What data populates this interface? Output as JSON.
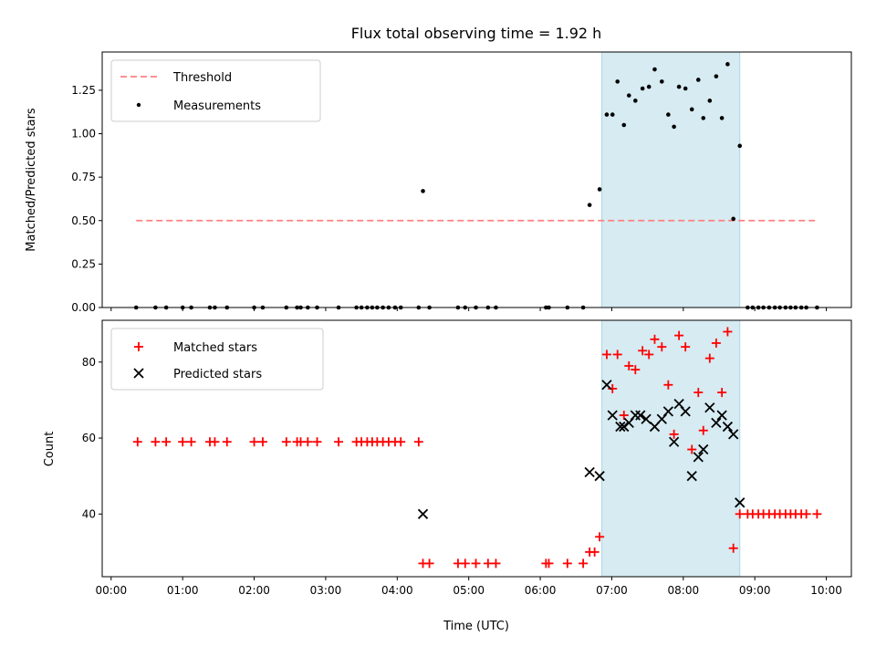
{
  "chart_data": {
    "title": "Flux total observing time = 1.92 h",
    "xlabel": "Time (UTC)",
    "xlim": [
      "-0.125",
      "10.35"
    ],
    "x_ticks": [
      {
        "value": 0,
        "label": "00:00"
      },
      {
        "value": 1,
        "label": "01:00"
      },
      {
        "value": 2,
        "label": "02:00"
      },
      {
        "value": 3,
        "label": "03:00"
      },
      {
        "value": 4,
        "label": "04:00"
      },
      {
        "value": 5,
        "label": "05:00"
      },
      {
        "value": 6,
        "label": "06:00"
      },
      {
        "value": 7,
        "label": "07:00"
      },
      {
        "value": 8,
        "label": "08:00"
      },
      {
        "value": 9,
        "label": "09:00"
      },
      {
        "value": 10,
        "label": "10:00"
      }
    ],
    "highlight_span": {
      "start": 6.86,
      "end": 8.79,
      "color": "#add8e6"
    },
    "top_panel": {
      "type": "scatter",
      "ylabel": "Matched/Predicted stars",
      "ylim": [
        0,
        1.47
      ],
      "y_ticks": [
        {
          "value": 0.0,
          "label": "0.00"
        },
        {
          "value": 0.25,
          "label": "0.25"
        },
        {
          "value": 0.5,
          "label": "0.50"
        },
        {
          "value": 0.75,
          "label": "0.75"
        },
        {
          "value": 1.0,
          "label": "1.00"
        },
        {
          "value": 1.25,
          "label": "1.25"
        }
      ],
      "legend_position": "upper-left",
      "threshold": {
        "name": "Threshold",
        "value": 0.5,
        "x_start": 0.35,
        "x_end": 9.85,
        "color": "#ff8080"
      },
      "measurements": {
        "name": "Measurements",
        "color": "#000000",
        "points": [
          [
            0.35,
            0
          ],
          [
            0.62,
            0
          ],
          [
            0.77,
            0
          ],
          [
            1.0,
            0
          ],
          [
            1.12,
            0
          ],
          [
            1.38,
            0
          ],
          [
            1.45,
            0
          ],
          [
            1.62,
            0
          ],
          [
            2.0,
            0
          ],
          [
            2.12,
            0
          ],
          [
            2.45,
            0
          ],
          [
            2.6,
            0
          ],
          [
            2.65,
            0
          ],
          [
            2.75,
            0
          ],
          [
            2.88,
            0
          ],
          [
            3.18,
            0
          ],
          [
            3.43,
            0
          ],
          [
            3.5,
            0
          ],
          [
            3.58,
            0
          ],
          [
            3.65,
            0
          ],
          [
            3.72,
            0
          ],
          [
            3.8,
            0
          ],
          [
            3.88,
            0
          ],
          [
            3.97,
            0
          ],
          [
            4.05,
            0
          ],
          [
            4.3,
            0
          ],
          [
            4.45,
            0
          ],
          [
            4.85,
            0
          ],
          [
            4.95,
            0
          ],
          [
            5.1,
            0
          ],
          [
            5.27,
            0
          ],
          [
            5.38,
            0
          ],
          [
            6.08,
            0
          ],
          [
            6.12,
            0
          ],
          [
            6.38,
            0
          ],
          [
            6.6,
            0
          ],
          [
            4.36,
            0.67
          ],
          [
            6.69,
            0.59
          ],
          [
            6.83,
            0.68
          ],
          [
            6.93,
            1.11
          ],
          [
            7.01,
            1.11
          ],
          [
            7.08,
            1.3
          ],
          [
            7.17,
            1.05
          ],
          [
            7.24,
            1.22
          ],
          [
            7.33,
            1.19
          ],
          [
            7.43,
            1.26
          ],
          [
            7.52,
            1.27
          ],
          [
            7.6,
            1.37
          ],
          [
            7.7,
            1.3
          ],
          [
            7.79,
            1.11
          ],
          [
            7.87,
            1.04
          ],
          [
            7.94,
            1.27
          ],
          [
            8.03,
            1.26
          ],
          [
            8.12,
            1.14
          ],
          [
            8.21,
            1.31
          ],
          [
            8.28,
            1.09
          ],
          [
            8.37,
            1.19
          ],
          [
            8.46,
            1.33
          ],
          [
            8.54,
            1.09
          ],
          [
            8.62,
            1.4
          ],
          [
            8.7,
            0.51
          ],
          [
            8.79,
            0.93
          ],
          [
            8.9,
            0
          ],
          [
            8.97,
            0
          ],
          [
            9.05,
            0
          ],
          [
            9.12,
            0
          ],
          [
            9.2,
            0
          ],
          [
            9.28,
            0
          ],
          [
            9.35,
            0
          ],
          [
            9.43,
            0
          ],
          [
            9.5,
            0
          ],
          [
            9.57,
            0
          ],
          [
            9.65,
            0
          ],
          [
            9.72,
            0
          ],
          [
            9.87,
            0
          ]
        ]
      }
    },
    "bottom_panel": {
      "type": "scatter",
      "ylabel": "Count",
      "ylim": [
        23.5,
        91
      ],
      "y_ticks": [
        {
          "value": 40,
          "label": "40"
        },
        {
          "value": 60,
          "label": "60"
        },
        {
          "value": 80,
          "label": "80"
        }
      ],
      "legend_position": "upper-left",
      "series": [
        {
          "name": "Matched stars",
          "marker": "plus",
          "color": "#ff0000",
          "points": [
            [
              0.37,
              59
            ],
            [
              0.62,
              59
            ],
            [
              0.77,
              59
            ],
            [
              1.0,
              59
            ],
            [
              1.12,
              59
            ],
            [
              1.38,
              59
            ],
            [
              1.45,
              59
            ],
            [
              1.62,
              59
            ],
            [
              2.0,
              59
            ],
            [
              2.12,
              59
            ],
            [
              2.45,
              59
            ],
            [
              2.6,
              59
            ],
            [
              2.65,
              59
            ],
            [
              2.75,
              59
            ],
            [
              2.88,
              59
            ],
            [
              3.18,
              59
            ],
            [
              3.43,
              59
            ],
            [
              3.5,
              59
            ],
            [
              3.58,
              59
            ],
            [
              3.65,
              59
            ],
            [
              3.72,
              59
            ],
            [
              3.8,
              59
            ],
            [
              3.88,
              59
            ],
            [
              3.97,
              59
            ],
            [
              4.05,
              59
            ],
            [
              4.3,
              59
            ],
            [
              4.36,
              27
            ],
            [
              4.45,
              27
            ],
            [
              4.85,
              27
            ],
            [
              4.95,
              27
            ],
            [
              5.1,
              27
            ],
            [
              5.27,
              27
            ],
            [
              5.38,
              27
            ],
            [
              6.08,
              27
            ],
            [
              6.12,
              27
            ],
            [
              6.38,
              27
            ],
            [
              6.6,
              27
            ],
            [
              6.69,
              30
            ],
            [
              6.76,
              30
            ],
            [
              6.83,
              34
            ],
            [
              6.93,
              82
            ],
            [
              7.01,
              73
            ],
            [
              7.08,
              82
            ],
            [
              7.17,
              66
            ],
            [
              7.24,
              79
            ],
            [
              7.33,
              78
            ],
            [
              7.43,
              83
            ],
            [
              7.52,
              82
            ],
            [
              7.6,
              86
            ],
            [
              7.7,
              84
            ],
            [
              7.79,
              74
            ],
            [
              7.87,
              61
            ],
            [
              7.94,
              87
            ],
            [
              8.03,
              84
            ],
            [
              8.12,
              57
            ],
            [
              8.21,
              72
            ],
            [
              8.28,
              62
            ],
            [
              8.37,
              81
            ],
            [
              8.46,
              85
            ],
            [
              8.54,
              72
            ],
            [
              8.62,
              88
            ],
            [
              8.7,
              31
            ],
            [
              8.79,
              40
            ],
            [
              8.9,
              40
            ],
            [
              8.97,
              40
            ],
            [
              9.05,
              40
            ],
            [
              9.12,
              40
            ],
            [
              9.2,
              40
            ],
            [
              9.28,
              40
            ],
            [
              9.35,
              40
            ],
            [
              9.43,
              40
            ],
            [
              9.5,
              40
            ],
            [
              9.57,
              40
            ],
            [
              9.65,
              40
            ],
            [
              9.72,
              40
            ],
            [
              9.87,
              40
            ]
          ]
        },
        {
          "name": "Predicted stars",
          "marker": "x",
          "color": "#000000",
          "points": [
            [
              4.36,
              40
            ],
            [
              6.69,
              51
            ],
            [
              6.83,
              50
            ],
            [
              6.93,
              74
            ],
            [
              7.01,
              66
            ],
            [
              7.12,
              63
            ],
            [
              7.17,
              63
            ],
            [
              7.24,
              64
            ],
            [
              7.33,
              66
            ],
            [
              7.4,
              66
            ],
            [
              7.48,
              65
            ],
            [
              7.6,
              63
            ],
            [
              7.7,
              65
            ],
            [
              7.79,
              67
            ],
            [
              7.87,
              59
            ],
            [
              7.94,
              69
            ],
            [
              8.03,
              67
            ],
            [
              8.12,
              50
            ],
            [
              8.21,
              55
            ],
            [
              8.28,
              57
            ],
            [
              8.37,
              68
            ],
            [
              8.46,
              64
            ],
            [
              8.54,
              66
            ],
            [
              8.62,
              63
            ],
            [
              8.7,
              61
            ],
            [
              8.79,
              43
            ]
          ]
        }
      ]
    }
  }
}
